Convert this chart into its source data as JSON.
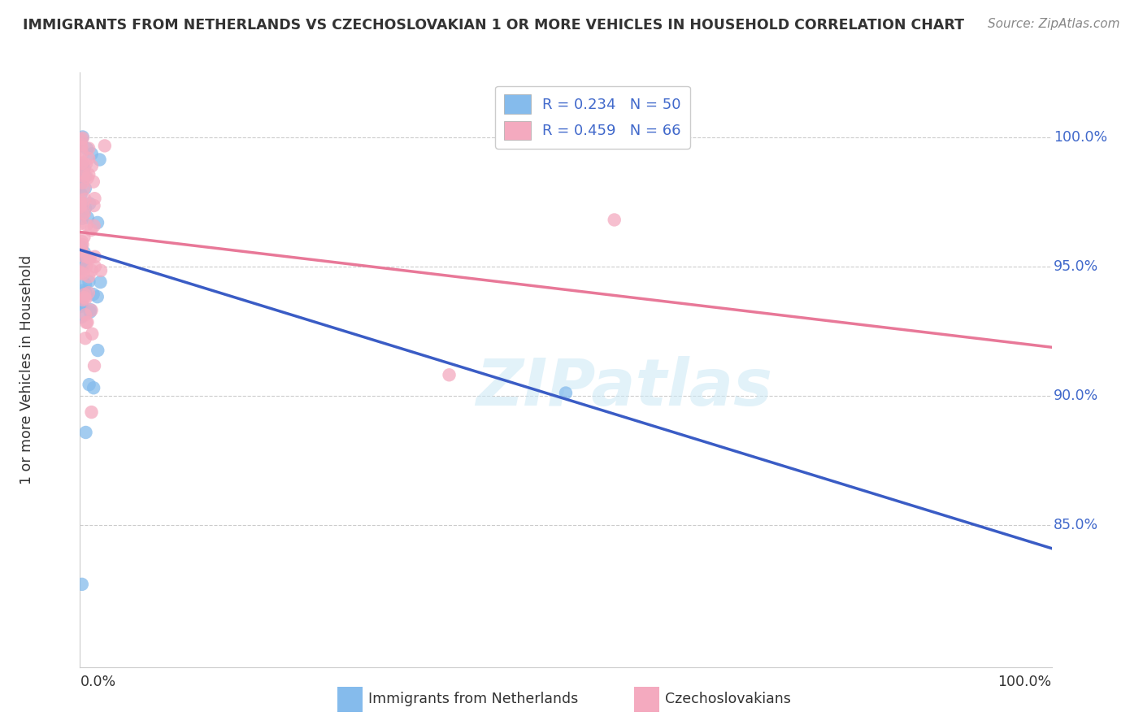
{
  "title": "IMMIGRANTS FROM NETHERLANDS VS CZECHOSLOVAKIAN 1 OR MORE VEHICLES IN HOUSEHOLD CORRELATION CHART",
  "source": "Source: ZipAtlas.com",
  "ylabel": "1 or more Vehicles in Household",
  "legend_label1": "Immigrants from Netherlands",
  "legend_label2": "Czechoslovakians",
  "R1": 0.234,
  "N1": 50,
  "R2": 0.459,
  "N2": 66,
  "color_blue": "#85BBEC",
  "color_pink": "#F4AABF",
  "line_blue": "#3A5CC5",
  "line_pink": "#E87898",
  "grid_color": "#CCCCCC",
  "text_color": "#333333",
  "axis_label_color": "#4169CB",
  "background": "#FFFFFF",
  "xlim": [
    0.0,
    1.0
  ],
  "ylim": [
    0.795,
    1.025
  ],
  "ytick_positions": [
    0.85,
    0.9,
    0.95,
    1.0
  ],
  "ytick_labels": [
    "85.0%",
    "90.0%",
    "95.0%",
    "100.0%"
  ]
}
